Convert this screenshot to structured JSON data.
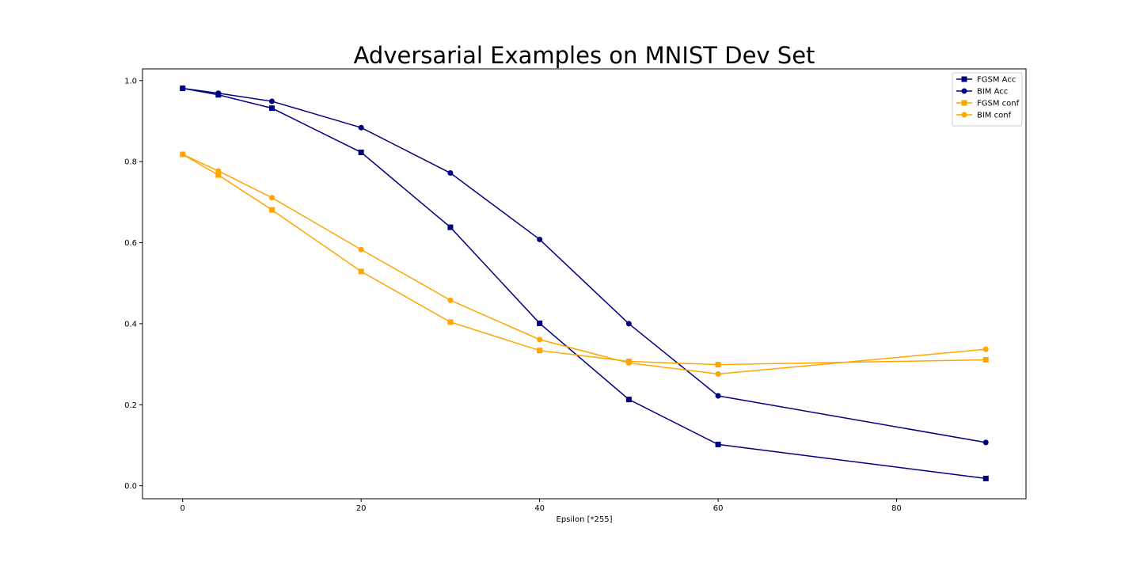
{
  "chart_data": {
    "type": "line",
    "title": "Adversarial Examples on MNIST Dev Set",
    "xlabel": "Epsilon [*255]",
    "ylabel": "",
    "xlim": [
      -4.5,
      94.5
    ],
    "ylim": [
      -0.032,
      1.029
    ],
    "xticks": [
      0,
      20,
      40,
      60,
      80
    ],
    "yticks": [
      0.0,
      0.2,
      0.4,
      0.6,
      0.8,
      1.0
    ],
    "xtick_labels": [
      "0",
      "20",
      "40",
      "60",
      "80"
    ],
    "ytick_labels": [
      "0.0",
      "0.2",
      "0.4",
      "0.6",
      "0.8",
      "1.0"
    ],
    "grid": false,
    "legend_position": "upper right",
    "series": [
      {
        "name": "FGSM Acc",
        "color": "#000080",
        "marker": "square",
        "x": [
          0,
          4,
          10,
          20,
          30,
          40,
          50,
          60,
          90
        ],
        "values": [
          0.981,
          0.965,
          0.932,
          0.823,
          0.638,
          0.401,
          0.213,
          0.102,
          0.018
        ]
      },
      {
        "name": "BIM Acc",
        "color": "#000080",
        "marker": "circle",
        "x": [
          0,
          4,
          10,
          20,
          30,
          40,
          50,
          60,
          90
        ],
        "values": [
          0.981,
          0.969,
          0.949,
          0.884,
          0.772,
          0.608,
          0.4,
          0.222,
          0.107
        ]
      },
      {
        "name": "FGSM conf",
        "color": "#FFA500",
        "marker": "square",
        "x": [
          0,
          4,
          10,
          20,
          30,
          40,
          50,
          60,
          90
        ],
        "values": [
          0.818,
          0.767,
          0.681,
          0.529,
          0.404,
          0.334,
          0.307,
          0.299,
          0.311
        ]
      },
      {
        "name": "BIM conf",
        "color": "#FFA500",
        "marker": "circle",
        "x": [
          0,
          4,
          10,
          20,
          30,
          40,
          50,
          60,
          90
        ],
        "values": [
          0.818,
          0.777,
          0.711,
          0.583,
          0.458,
          0.361,
          0.303,
          0.276,
          0.337
        ]
      }
    ]
  }
}
